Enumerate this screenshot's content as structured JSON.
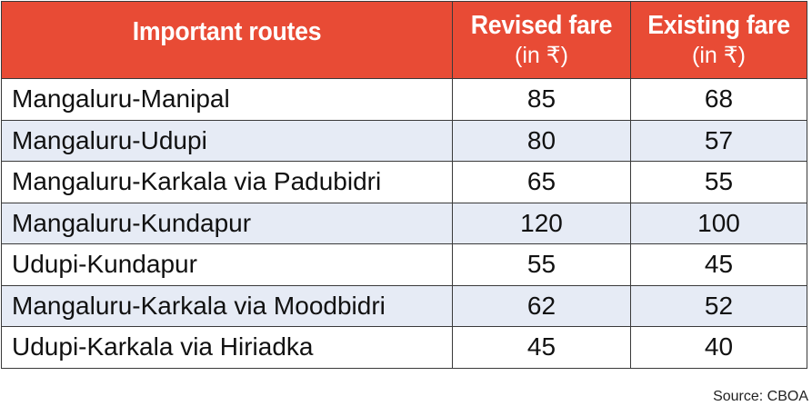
{
  "header": {
    "route_label": "Important routes",
    "revised_label": "Revised fare",
    "revised_unit": "(in ₹)",
    "existing_label": "Existing fare",
    "existing_unit": "(in ₹)"
  },
  "rows": [
    {
      "route": "Mangaluru-Manipal",
      "revised": "85",
      "existing": "68"
    },
    {
      "route": "Mangaluru-Udupi",
      "revised": "80",
      "existing": "57"
    },
    {
      "route": "Mangaluru-Karkala via Padubidri",
      "revised": "65",
      "existing": "55"
    },
    {
      "route": "Mangaluru-Kundapur",
      "revised": "120",
      "existing": "100"
    },
    {
      "route": "Udupi-Kundapur",
      "revised": "55",
      "existing": "45"
    },
    {
      "route": "Mangaluru-Karkala via Moodbidri",
      "revised": "62",
      "existing": "52"
    },
    {
      "route": "Udupi-Karkala via Hiriadka",
      "revised": "45",
      "existing": "40"
    }
  ],
  "source": "Source: CBOA",
  "colors": {
    "header_bg": "#e84b35",
    "header_text": "#ffffff",
    "stripe_bg": "#e6ebf5",
    "border": "#3a3a3a"
  }
}
